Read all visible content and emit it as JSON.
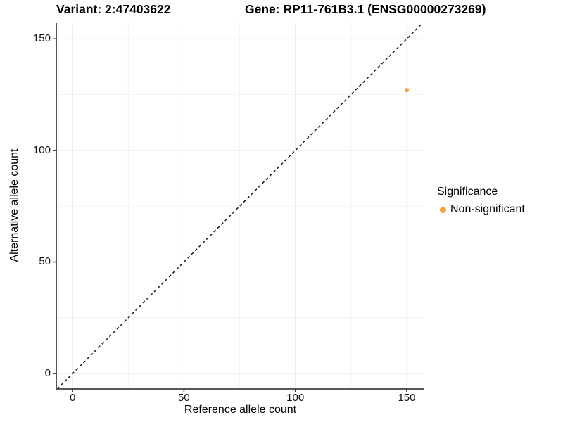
{
  "titles": {
    "variant": "Variant: 2:47403622",
    "gene": "Gene: RP11-761B3.1 (ENSG00000273269)"
  },
  "axes": {
    "x": {
      "label": "Reference allele count",
      "tick_labels": [
        "0",
        "50",
        "100",
        "150"
      ]
    },
    "y": {
      "label": "Alternative allele count",
      "tick_labels": [
        "0",
        "50",
        "100",
        "150"
      ]
    }
  },
  "legend": {
    "title": "Significance",
    "items": [
      {
        "label": "Non-significant",
        "color": "#F9A03C",
        "marker": "circle"
      }
    ]
  },
  "colors": {
    "point": "#F9A03C",
    "grid_major": "#e7e7e7",
    "grid_minor": "#f4f4f4",
    "axis_line": "#404040",
    "tick_mark": "#333333",
    "identity_line": "#1a1a1a",
    "background": "#ffffff"
  },
  "chart_data": {
    "type": "scatter",
    "titles": [
      "Variant: 2:47403622",
      "Gene: RP11-761B3.1 (ENSG00000273269)"
    ],
    "xlabel": "Reference allele count",
    "ylabel": "Alternative allele count",
    "xlim": [
      -7.3,
      157.9
    ],
    "ylim": [
      -6.9,
      157.0
    ],
    "x_ticks": [
      0,
      50,
      100,
      150
    ],
    "y_ticks": [
      0,
      50,
      100,
      150
    ],
    "grid": "major+minor",
    "legend_position": "right",
    "series": [
      {
        "name": "Non-significant",
        "color": "#F9A03C",
        "points": [
          {
            "x": 150,
            "y": 127
          }
        ]
      }
    ],
    "reference_line": {
      "kind": "identity",
      "slope": 1,
      "intercept": 0,
      "style": "dashed",
      "color": "#000000"
    }
  }
}
